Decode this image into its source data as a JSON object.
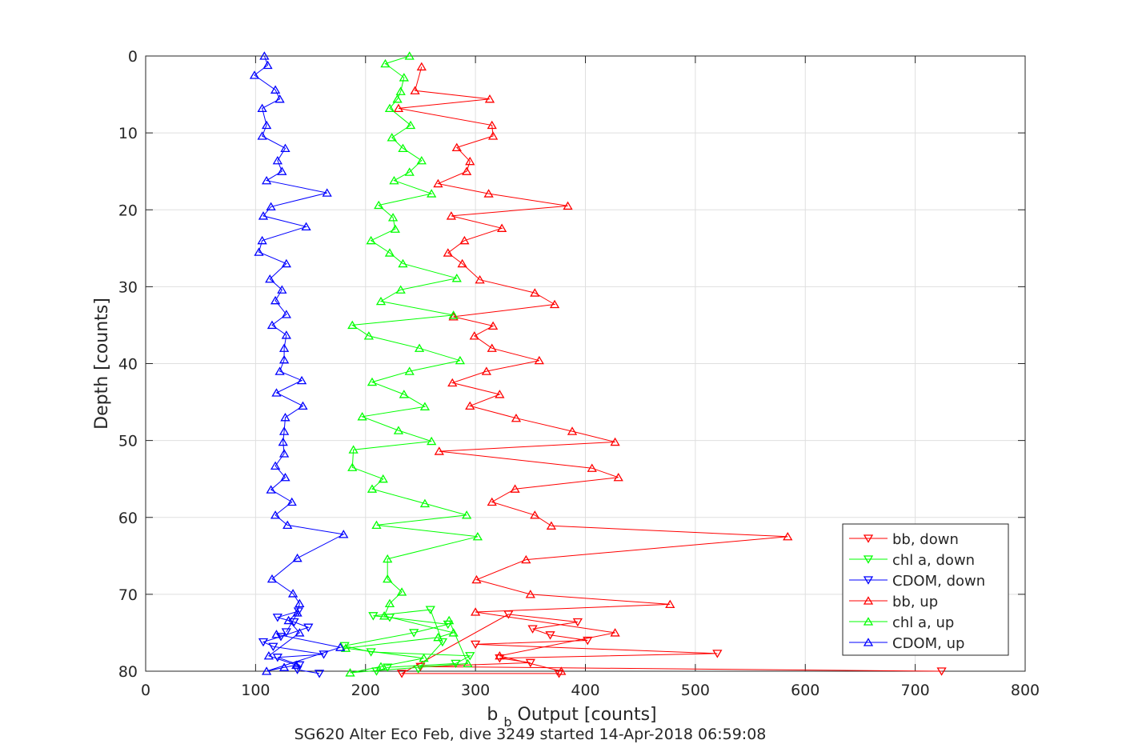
{
  "chart_data": {
    "type": "line",
    "title": "",
    "xlabel_main": "b",
    "xlabel_sub": "b",
    "xlabel_rest": " Output [counts]",
    "ylabel": "Depth [counts]",
    "caption": "SG620 Alter Eco Feb, dive 3249 started 14-Apr-2018 06:59:08",
    "xlim": [
      0,
      800
    ],
    "ylim": [
      0,
      80
    ],
    "y_reversed": true,
    "grid": true,
    "legend_position": "bottom-right",
    "xticks": [
      0,
      100,
      200,
      300,
      400,
      500,
      600,
      700,
      800
    ],
    "xtick_labels": [
      "0",
      "100",
      "200",
      "300",
      "400",
      "500",
      "600",
      "700",
      "800"
    ],
    "yticks": [
      0,
      10,
      20,
      30,
      40,
      50,
      60,
      70,
      80
    ],
    "ytick_labels": [
      "0",
      "10",
      "20",
      "30",
      "40",
      "50",
      "60",
      "70",
      "80"
    ],
    "series": [
      {
        "name": "bb, down",
        "color": "#ff0000",
        "marker": "triangle-down",
        "points": [
          [
            724,
            80.0
          ],
          [
            250,
            79.4
          ],
          [
            350,
            78.9
          ],
          [
            322,
            78.3
          ],
          [
            520,
            77.7
          ],
          [
            300,
            76.5
          ],
          [
            402,
            76.0
          ],
          [
            368,
            75.3
          ],
          [
            352,
            74.5
          ],
          [
            393,
            73.6
          ],
          [
            330,
            72.6
          ],
          [
            233,
            80.3
          ],
          [
            376,
            80.3
          ]
        ]
      },
      {
        "name": "chl a, down",
        "color": "#00ff00",
        "marker": "triangle-down",
        "points": [
          [
            210,
            80.0
          ],
          [
            220,
            79.5
          ],
          [
            282,
            79.0
          ],
          [
            295,
            78.0
          ],
          [
            205,
            77.5
          ],
          [
            181,
            76.7
          ],
          [
            244,
            75.0
          ],
          [
            275,
            73.9
          ],
          [
            222,
            73.0
          ],
          [
            207,
            72.8
          ],
          [
            259,
            72.0
          ],
          [
            270,
            76.2
          ],
          [
            248,
            79.7
          ]
        ]
      },
      {
        "name": "CDOM, down",
        "color": "#0000ff",
        "marker": "triangle-down",
        "points": [
          [
            158,
            80.3
          ],
          [
            138,
            79.8
          ],
          [
            140,
            79.2
          ],
          [
            120,
            78.2
          ],
          [
            162,
            77.8
          ],
          [
            116,
            76.8
          ],
          [
            107,
            76.2
          ],
          [
            123,
            75.5
          ],
          [
            148,
            74.3
          ],
          [
            135,
            73.6
          ],
          [
            120,
            73.0
          ],
          [
            139,
            72.2
          ],
          [
            128,
            74.9
          ]
        ]
      },
      {
        "name": "bb, up",
        "color": "#ff0000",
        "marker": "triangle-up",
        "points": [
          [
            251,
            1.4
          ],
          [
            245,
            4.5
          ],
          [
            313,
            5.6
          ],
          [
            230,
            6.8
          ],
          [
            315,
            9.0
          ],
          [
            316,
            10.4
          ],
          [
            283,
            11.9
          ],
          [
            295,
            13.7
          ],
          [
            292,
            15.0
          ],
          [
            266,
            16.6
          ],
          [
            312,
            17.9
          ],
          [
            384,
            19.5
          ],
          [
            278,
            20.8
          ],
          [
            324,
            22.4
          ],
          [
            290,
            24.0
          ],
          [
            275,
            25.6
          ],
          [
            288,
            27.0
          ],
          [
            304,
            29.1
          ],
          [
            354,
            30.8
          ],
          [
            372,
            32.3
          ],
          [
            280,
            33.9
          ],
          [
            316,
            35.1
          ],
          [
            299,
            36.4
          ],
          [
            315,
            38.0
          ],
          [
            358,
            39.6
          ],
          [
            310,
            41.0
          ],
          [
            279,
            42.5
          ],
          [
            322,
            44.0
          ],
          [
            295,
            45.5
          ],
          [
            337,
            47.1
          ],
          [
            388,
            48.8
          ],
          [
            427,
            50.2
          ],
          [
            267,
            51.4
          ],
          [
            406,
            53.6
          ],
          [
            430,
            54.8
          ],
          [
            336,
            56.3
          ],
          [
            315,
            58.0
          ],
          [
            354,
            59.7
          ],
          [
            369,
            61.1
          ],
          [
            584,
            62.5
          ],
          [
            346,
            65.5
          ],
          [
            301,
            68.1
          ],
          [
            350,
            70.0
          ],
          [
            477,
            71.3
          ],
          [
            300,
            72.3
          ],
          [
            427,
            75.0
          ],
          [
            322,
            78.0
          ],
          [
            378,
            80.0
          ]
        ]
      },
      {
        "name": "chl a, up",
        "color": "#00ff00",
        "marker": "triangle-up",
        "points": [
          [
            240,
            0.0
          ],
          [
            218,
            1.0
          ],
          [
            235,
            2.8
          ],
          [
            232,
            4.6
          ],
          [
            229,
            5.6
          ],
          [
            222,
            6.8
          ],
          [
            241,
            9.0
          ],
          [
            224,
            10.6
          ],
          [
            234,
            12.0
          ],
          [
            251,
            13.6
          ],
          [
            240,
            15.1
          ],
          [
            226,
            16.2
          ],
          [
            260,
            17.9
          ],
          [
            212,
            19.4
          ],
          [
            225,
            21.0
          ],
          [
            227,
            22.5
          ],
          [
            205,
            24.0
          ],
          [
            222,
            25.6
          ],
          [
            234,
            27.0
          ],
          [
            283,
            28.9
          ],
          [
            232,
            30.4
          ],
          [
            214,
            31.9
          ],
          [
            280,
            33.7
          ],
          [
            188,
            35.0
          ],
          [
            203,
            36.4
          ],
          [
            249,
            38.0
          ],
          [
            286,
            39.6
          ],
          [
            240,
            41.0
          ],
          [
            206,
            42.4
          ],
          [
            235,
            44.0
          ],
          [
            254,
            45.6
          ],
          [
            197,
            46.9
          ],
          [
            230,
            48.7
          ],
          [
            260,
            50.1
          ],
          [
            189,
            51.2
          ],
          [
            188,
            53.5
          ],
          [
            216,
            55.0
          ],
          [
            206,
            56.3
          ],
          [
            254,
            58.2
          ],
          [
            292,
            59.7
          ],
          [
            210,
            61.0
          ],
          [
            302,
            62.5
          ],
          [
            220,
            65.4
          ],
          [
            220,
            68.0
          ],
          [
            233,
            69.7
          ],
          [
            222,
            71.2
          ],
          [
            217,
            72.8
          ],
          [
            280,
            75.0
          ],
          [
            266,
            75.6
          ],
          [
            182,
            77.0
          ],
          [
            253,
            78.3
          ],
          [
            214,
            79.4
          ],
          [
            186,
            80.2
          ],
          [
            293,
            79.0
          ],
          [
            276,
            73.4
          ]
        ]
      },
      {
        "name": "CDOM, up",
        "color": "#0000ff",
        "marker": "triangle-up",
        "points": [
          [
            108,
            0.0
          ],
          [
            111,
            1.2
          ],
          [
            99,
            2.5
          ],
          [
            118,
            4.4
          ],
          [
            122,
            5.6
          ],
          [
            106,
            6.8
          ],
          [
            110,
            9.0
          ],
          [
            106,
            10.4
          ],
          [
            127,
            12.0
          ],
          [
            120,
            13.6
          ],
          [
            124,
            15.0
          ],
          [
            110,
            16.2
          ],
          [
            165,
            17.8
          ],
          [
            114,
            19.6
          ],
          [
            107,
            20.8
          ],
          [
            146,
            22.2
          ],
          [
            106,
            24.0
          ],
          [
            103,
            25.5
          ],
          [
            128,
            27.0
          ],
          [
            113,
            29.0
          ],
          [
            124,
            30.4
          ],
          [
            118,
            31.8
          ],
          [
            128,
            33.6
          ],
          [
            115,
            35.0
          ],
          [
            128,
            36.3
          ],
          [
            126,
            38.0
          ],
          [
            126,
            39.5
          ],
          [
            122,
            41.0
          ],
          [
            142,
            42.2
          ],
          [
            119,
            43.8
          ],
          [
            143,
            45.5
          ],
          [
            127,
            47.0
          ],
          [
            126,
            48.8
          ],
          [
            125,
            50.2
          ],
          [
            126,
            51.7
          ],
          [
            118,
            53.3
          ],
          [
            127,
            54.8
          ],
          [
            114,
            56.4
          ],
          [
            133,
            58.0
          ],
          [
            118,
            59.7
          ],
          [
            129,
            61.0
          ],
          [
            180,
            62.2
          ],
          [
            138,
            65.3
          ],
          [
            115,
            68.0
          ],
          [
            134,
            69.9
          ],
          [
            140,
            71.2
          ],
          [
            138,
            72.4
          ],
          [
            130,
            73.4
          ],
          [
            140,
            75.0
          ],
          [
            112,
            78.0
          ],
          [
            137,
            79.2
          ],
          [
            126,
            79.5
          ],
          [
            110,
            80.0
          ],
          [
            177,
            76.9
          ],
          [
            119,
            75.2
          ]
        ]
      }
    ]
  }
}
